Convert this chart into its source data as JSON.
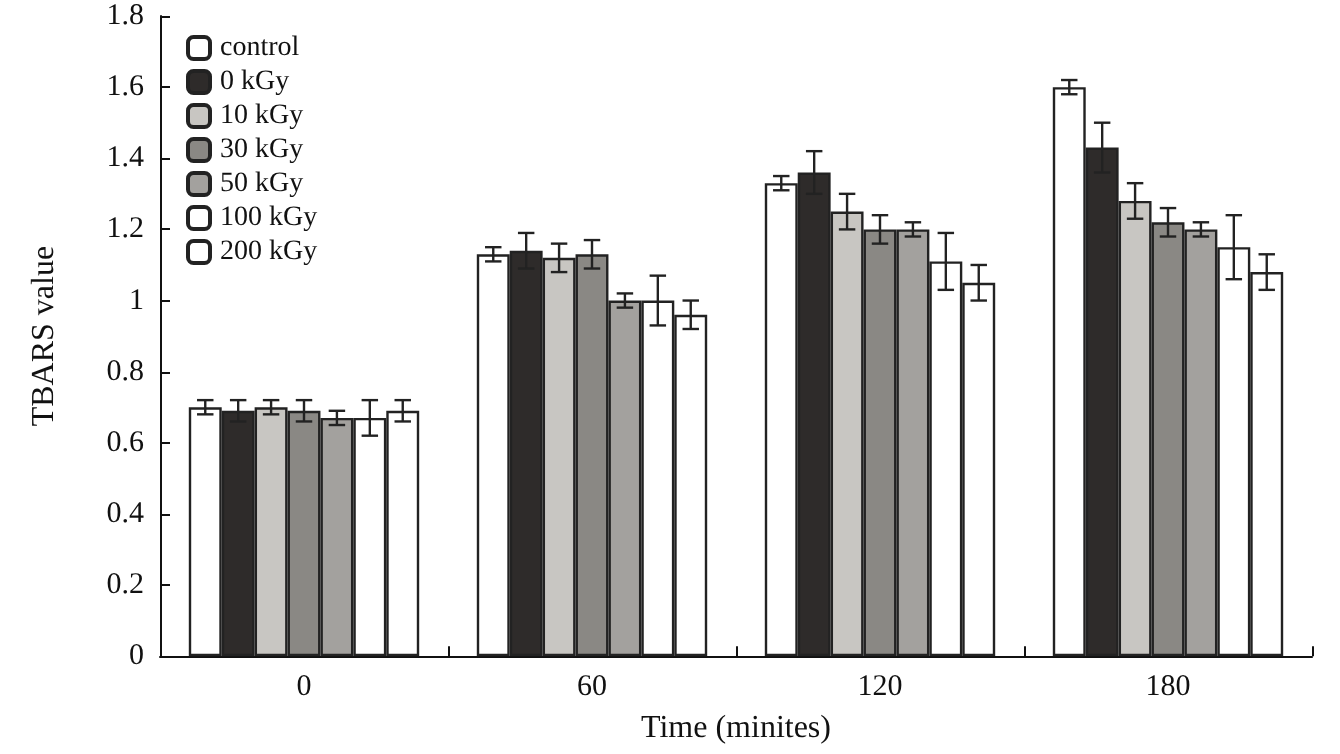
{
  "chart_data": {
    "type": "bar",
    "xlabel": "Time (minites)",
    "ylabel": "TBARS value",
    "categories": [
      "0",
      "60",
      "120",
      "180"
    ],
    "ylim": [
      0,
      1.8
    ],
    "yticks": [
      0,
      0.2,
      0.4,
      0.6,
      0.8,
      1,
      1.2,
      1.4,
      1.6,
      1.8
    ],
    "grid": false,
    "legend": "top left",
    "series": [
      {
        "name": "control",
        "color": "#ffffff",
        "values": [
          0.7,
          1.13,
          1.33,
          1.6
        ],
        "errors": [
          0.02,
          0.02,
          0.02,
          0.02
        ]
      },
      {
        "name": "0 kGy",
        "color": "#2e2b2a",
        "values": [
          0.69,
          1.14,
          1.36,
          1.43
        ],
        "errors": [
          0.03,
          0.05,
          0.06,
          0.07
        ]
      },
      {
        "name": "10 kGy",
        "color": "#c8c6c2",
        "values": [
          0.7,
          1.12,
          1.25,
          1.28
        ],
        "errors": [
          0.02,
          0.04,
          0.05,
          0.05
        ]
      },
      {
        "name": "30 kGy",
        "color": "#8a8884",
        "values": [
          0.69,
          1.13,
          1.2,
          1.22
        ],
        "errors": [
          0.03,
          0.04,
          0.04,
          0.04
        ]
      },
      {
        "name": "50 kGy",
        "color": "#a3a19e",
        "values": [
          0.67,
          1.0,
          1.2,
          1.2
        ],
        "errors": [
          0.02,
          0.02,
          0.02,
          0.02
        ]
      },
      {
        "name": "100 kGy",
        "color": "#ffffff",
        "values": [
          0.67,
          1.0,
          1.11,
          1.15
        ],
        "errors": [
          0.05,
          0.07,
          0.08,
          0.09
        ]
      },
      {
        "name": "200 kGy",
        "color": "#ffffff",
        "values": [
          0.69,
          0.96,
          1.05,
          1.08
        ],
        "errors": [
          0.03,
          0.04,
          0.05,
          0.05
        ]
      }
    ]
  }
}
